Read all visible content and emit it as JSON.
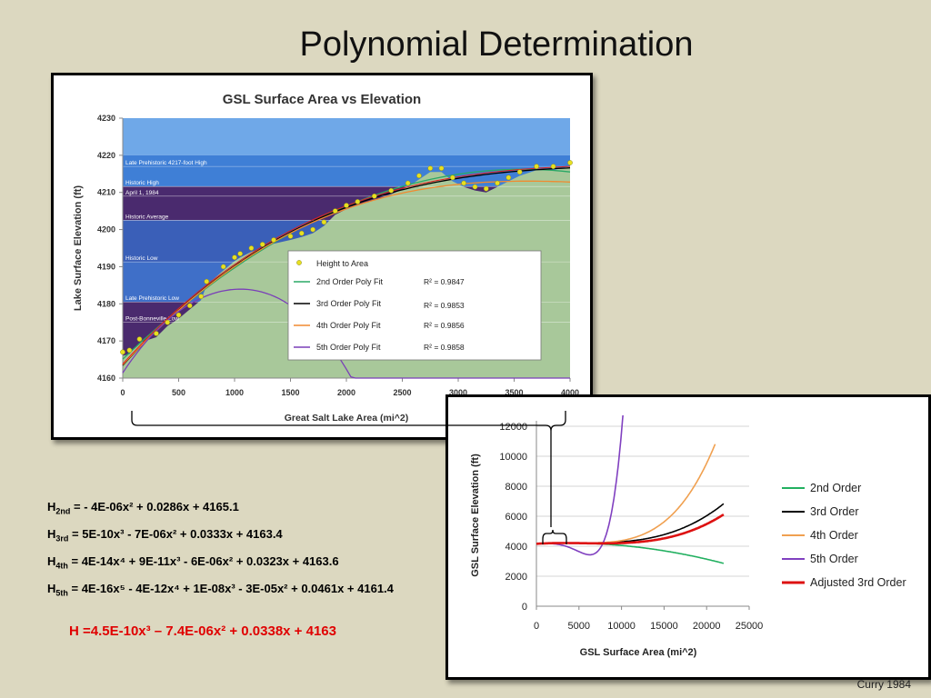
{
  "slide": {
    "title": "Polynomial Determination",
    "credit": "Curry 1984"
  },
  "equations": [
    {
      "sym": "H",
      "sub": "2nd",
      "text": " = - 4E-06x² + 0.0286x + 4165.1"
    },
    {
      "sym": "H",
      "sub": "3rd",
      "text": " = 5E-10x³ - 7E-06x² + 0.0333x + 4163.4"
    },
    {
      "sym": "H",
      "sub": "4th",
      "text": " = 4E-14x⁴ + 9E-11x³ - 6E-06x² + 0.0323x + 4163.6"
    },
    {
      "sym": "H",
      "sub": "5th",
      "text": " = 4E-16x⁵ - 4E-12x⁴ + 1E-08x³ - 3E-05x² + 0.0461x + 4161.4"
    }
  ],
  "adjusted_equation": "H =4.5E-10x³ – 7.4E-06x² + 0.0338x + 4163",
  "chart_data": [
    {
      "type": "scatter",
      "title": "GSL Surface Area vs Elevation",
      "xlabel": "Great Salt Lake Area (mi^2)",
      "ylabel": "Lake Surface Elevation (ft)",
      "xlim": [
        0,
        4000
      ],
      "ylim": [
        4160,
        4230
      ],
      "xticks": [
        0,
        500,
        1000,
        1500,
        2000,
        2500,
        3000,
        3500,
        4000
      ],
      "yticks": [
        4160,
        4170,
        4180,
        4190,
        4200,
        4210,
        4220,
        4230
      ],
      "background_bands": [
        {
          "label": "Late Prehistoric 4217-foot High",
          "y": 4217
        },
        {
          "label": "Historic High",
          "y": 4211.6
        },
        {
          "label": "April 1, 1984",
          "y": 4209
        },
        {
          "label": "Historic Average",
          "y": 4202.5
        },
        {
          "label": "Historic Low",
          "y": 4191.3
        },
        {
          "label": "Late Prehistoric Low",
          "y": 4180.5
        },
        {
          "label": "Post-Bonneville Low",
          "y": 4175
        }
      ],
      "points": {
        "name": "Height to Area",
        "x": [
          0,
          60,
          150,
          300,
          400,
          500,
          600,
          700,
          750,
          900,
          1000,
          1050,
          1150,
          1250,
          1350,
          1500,
          1600,
          1700,
          1800,
          1900,
          2000,
          2100,
          2250,
          2400,
          2550,
          2650,
          2750,
          2850,
          2950,
          3050,
          3150,
          3250,
          3350,
          3450,
          3550,
          3700,
          3850,
          4000
        ],
        "y": [
          4167,
          4167.5,
          4170.5,
          4172,
          4175,
          4177,
          4179.5,
          4182,
          4186,
          4190,
          4192.5,
          4193.5,
          4195,
          4196,
          4197.2,
          4198.2,
          4199,
          4200,
          4202,
          4205,
          4206.5,
          4207.5,
          4209,
          4210.5,
          4212.5,
          4214.5,
          4216.5,
          4216.5,
          4214,
          4212.5,
          4211.5,
          4211,
          4212.5,
          4214,
          4215.5,
          4217,
          4217,
          4218
        ]
      },
      "series": [
        {
          "name": "2nd Order Poly Fit",
          "r2": "R² = 0.9847",
          "color": "#2aa866",
          "coef": [
            4165.1,
            0.0286,
            -4e-06
          ]
        },
        {
          "name": "3rd Order Poly Fit",
          "r2": "R² = 0.9853",
          "color": "#000000",
          "coef": [
            4163.4,
            0.0333,
            -7e-06,
            5e-10
          ]
        },
        {
          "name": "4th Order Poly Fit",
          "r2": "R² = 0.9856",
          "color": "#f08a30",
          "coef": [
            4163.6,
            0.0323,
            -6e-06,
            9e-11,
            4e-14
          ]
        },
        {
          "name": "5th Order Poly Fit",
          "r2": "R² = 0.9858",
          "color": "#7a3fb8",
          "coef": [
            4161.4,
            0.0461,
            -3e-05,
            1e-08,
            -4e-12,
            4e-16
          ]
        }
      ],
      "colors": {
        "water": "#3f7fd6",
        "water_deep": "#4a2a6e",
        "land": "#a8c89a",
        "sky": "#79a9e5",
        "fit_highlight": "#e02020",
        "points": "#e8e020"
      }
    },
    {
      "type": "line",
      "title": "",
      "xlabel": "GSL Surface Area (mi^2)",
      "ylabel": "GSL Surface Elevation (ft)",
      "xlim": [
        0,
        25000
      ],
      "ylim": [
        0,
        12000
      ],
      "xticks": [
        0,
        5000,
        10000,
        15000,
        20000,
        25000
      ],
      "yticks": [
        0,
        2000,
        4000,
        6000,
        8000,
        10000,
        12000
      ],
      "grid": true,
      "legend_position": "right",
      "series": [
        {
          "name": "2nd Order",
          "color": "#22b060",
          "coef": [
            4165.1,
            0.0286,
            -4e-06
          ],
          "xmax": 22000
        },
        {
          "name": "3rd Order",
          "color": "#000000",
          "coef": [
            4163.4,
            0.0333,
            -7e-06,
            5e-10
          ],
          "xmax": 22000
        },
        {
          "name": "4th Order",
          "color": "#f0a050",
          "coef": [
            4163.6,
            0.0323,
            -6e-06,
            9e-11,
            4e-14
          ],
          "xmax": 21000
        },
        {
          "name": "5th Order",
          "color": "#8040c0",
          "coef": [
            4161.4,
            0.0461,
            -3e-05,
            1e-08,
            -4e-12,
            4e-16
          ],
          "xmax": 11000
        },
        {
          "name": "Adjusted 3rd Order",
          "color": "#dd1111",
          "coef": [
            4163,
            0.0338,
            -7.4e-06,
            4.5e-10
          ],
          "xmax": 22000
        }
      ]
    }
  ]
}
